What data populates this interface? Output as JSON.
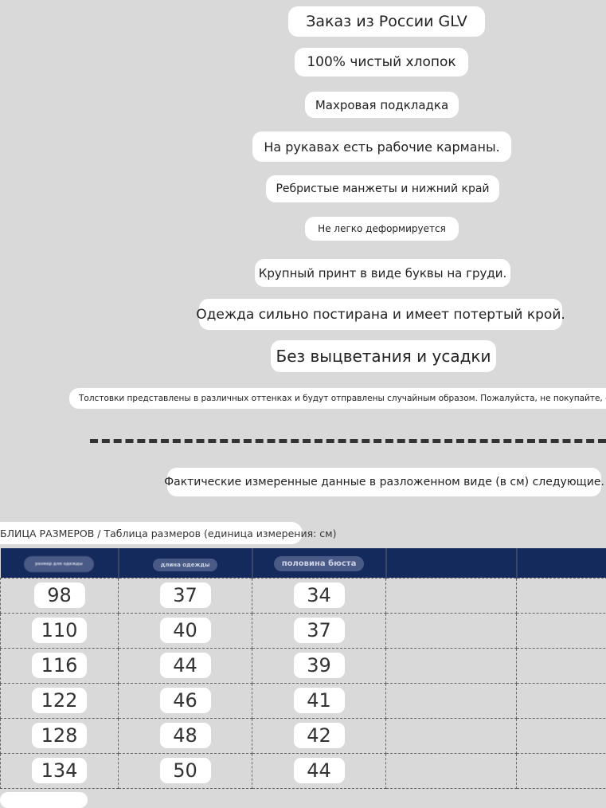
{
  "features": [
    "Заказ из России GLV",
    "100% чистый хлопок",
    "Махровая подкладка",
    "На рукавах есть рабочие карманы.",
    "Ребристые манжеты и нижний край",
    "Не легко деформируется",
    "Крупный принт в виде буквы на груди.",
    "Одежда сильно постирана и имеет потертый крой.",
    "Без выцветания и усадки"
  ],
  "notice": "Толстовки представлены в различных оттенках и будут отправлены случайным образом. Пожалуйста, не покупайте, если",
  "measure_note": "Фактические измеренные данные в разложенном виде (в см) следующие.",
  "size_table": {
    "title": "БЛИЦА РАЗМЕРОВ / Таблица размеров (единица измерения: см)",
    "headers": [
      "размер для одежды",
      "длина одежды",
      "половина бюста"
    ],
    "header_color": "#142a5c",
    "rows": [
      [
        "98",
        "37",
        "34"
      ],
      [
        "110",
        "40",
        "37"
      ],
      [
        "116",
        "44",
        "39"
      ],
      [
        "122",
        "46",
        "41"
      ],
      [
        "128",
        "48",
        "42"
      ],
      [
        "134",
        "50",
        "44"
      ]
    ]
  }
}
